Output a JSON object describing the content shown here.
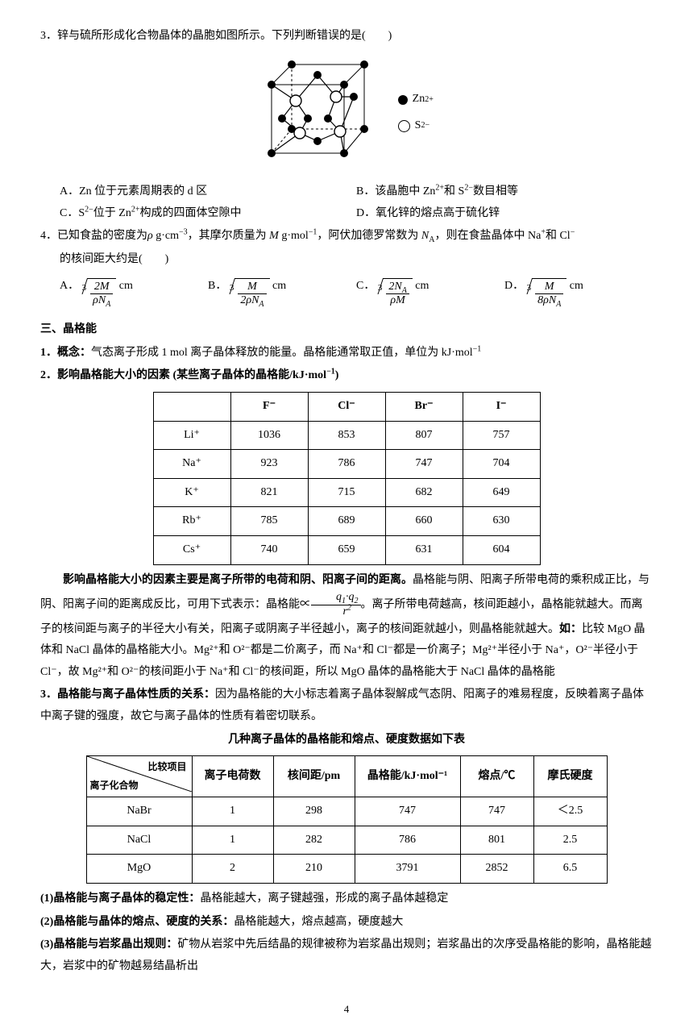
{
  "q3": {
    "stem": "3．锌与硫所形成化合物晶体的晶胞如图所示。下列判断错误的是(　　)",
    "legend": {
      "zn": "Zn",
      "zn_charge": "2+",
      "s": "S",
      "s_charge": "2−"
    },
    "A": "A．Zn 位于元素周期表的 d 区",
    "B_pre": "B．该晶胞中 Zn",
    "B_mid": "和 S",
    "B_post": "数目相等",
    "C_pre": "C．S",
    "C_mid": "位于 Zn",
    "C_post": "构成的四面体空隙中",
    "D": "D．氧化锌的熔点高于硫化锌"
  },
  "q4": {
    "stem_a": "4．已知食盐的密度为",
    "rho": "ρ",
    "unit_rho": " g·cm",
    "stem_b": "，其摩尔质量为 ",
    "M": "M",
    "unit_M": " g·mol",
    "stem_c": "，阿伏加德罗常数为 ",
    "NA_lbl": "N",
    "stem_d": "，则在食盐晶体中 Na",
    "stem_e": "和 Cl",
    "stem_f": "的核间距大约是(　　)",
    "opts": {
      "A_lbl": "A．",
      "A_num": "2M",
      "A_den_a": "ρN",
      "A_unit": " cm",
      "B_lbl": "B．",
      "B_num": "M",
      "B_den_a": "2ρN",
      "B_unit": " cm",
      "C_lbl": "C．",
      "C_num_a": "2N",
      "C_den": "ρM",
      "C_unit": " cm",
      "D_lbl": "D．",
      "D_num": "M",
      "D_den_a": "8ρN",
      "D_unit": " cm"
    }
  },
  "sec3": {
    "title": "三、晶格能",
    "p1_lbl": "1．概念：",
    "p1": "气态离子形成 1 mol 离子晶体释放的能量。晶格能通常取正值，单位为 kJ·mol",
    "p2_lbl": "2．影响晶格能大小的因素  (某些离子晶体的晶格能/kJ·mol",
    "p2_end": ")",
    "t1": {
      "cols": [
        "",
        "F⁻",
        "Cl⁻",
        "Br⁻",
        "I⁻"
      ],
      "rows": [
        [
          "Li⁺",
          "1036",
          "853",
          "807",
          "757"
        ],
        [
          "Na⁺",
          "923",
          "786",
          "747",
          "704"
        ],
        [
          "K⁺",
          "821",
          "715",
          "682",
          "649"
        ],
        [
          "Rb⁺",
          "785",
          "689",
          "660",
          "630"
        ],
        [
          "Cs⁺",
          "740",
          "659",
          "631",
          "604"
        ]
      ]
    },
    "para1_a": "影响晶格能大小的因素主要是离子所带的电荷和阴、阳离子间的距离。",
    "para1_b": "晶格能与阴、阳离子所带电荷的乘积成正比，与阴、阳离子间的距离成反比，可用下式表示：晶格能∝",
    "frac_num_a": "q",
    "frac_num_mid": "·",
    "frac_num_b": "q",
    "frac_den": "r",
    "para1_c": "。离子所带电荷越高，核间距越小，晶格能就越大。而离子的核间距与离子的半径大小有关，阳离子或阴离子半径越小，离子的核间距就越小，则晶格能就越大。",
    "para1_d_lbl": "如：",
    "para1_d": "比较 MgO 晶体和 NaCl 晶体的晶格能大小。Mg²⁺和 O²⁻都是二价离子，而 Na⁺和 Cl⁻都是一价离子；Mg²⁺半径小于 Na⁺，O²⁻半径小于 Cl⁻，故 Mg²⁺和 O²⁻的核间距小于 Na⁺和 Cl⁻的核间距，所以 MgO 晶体的晶格能大于 NaCl 晶体的晶格能",
    "p3_lbl": "3．晶格能与离子晶体性质的关系：",
    "p3": "因为晶格能的大小标志着离子晶体裂解成气态阴、阳离子的难易程度，反映着离子晶体中离子键的强度，故它与离子晶体的性质有着密切联系。",
    "t2_title": "几种离子晶体的晶格能和熔点、硬度数据如下表",
    "t2": {
      "diag_top": "比较项目",
      "diag_bot": "离子化合物",
      "headers": [
        "离子电荷数",
        "核间距/pm",
        "晶格能/kJ·mol⁻¹",
        "熔点/℃",
        "摩氏硬度"
      ],
      "widths": [
        100,
        100,
        130,
        90,
        90
      ],
      "rows": [
        [
          "NaBr",
          "1",
          "298",
          "747",
          "747",
          "＜2.5"
        ],
        [
          "NaCl",
          "1",
          "282",
          "786",
          "801",
          "2.5"
        ],
        [
          "MgO",
          "2",
          "210",
          "3791",
          "2852",
          "6.5"
        ]
      ]
    },
    "b1_lbl": "(1)晶格能与离子晶体的稳定性：",
    "b1": "晶格能越大，离子键越强，形成的离子晶体越稳定",
    "b2_lbl": "(2)晶格能与晶体的熔点、硬度的关系：",
    "b2": "晶格能越大，熔点越高，硬度越大",
    "b3_lbl": "(3)晶格能与岩浆晶出规则：",
    "b3": "矿物从岩浆中先后结晶的规律被称为岩浆晶出规则；岩浆晶出的次序受晶格能的影响，晶格能越大，岩浆中的矿物越易结晶析出"
  },
  "page": "4"
}
